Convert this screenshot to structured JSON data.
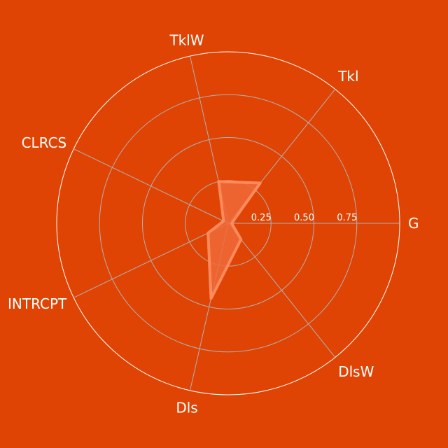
{
  "chart_data": {
    "type": "radar",
    "axes": [
      "G",
      "Tkl",
      "TklW",
      "CLRCS",
      "INTRCPT",
      "Dls",
      "DlsW"
    ],
    "series": [
      {
        "values": [
          0.02,
          0.3,
          0.25,
          0.03,
          0.13,
          0.45,
          0.12
        ]
      }
    ],
    "rlim": [
      0,
      1
    ],
    "rticks": [
      0.25,
      0.5,
      0.75
    ],
    "rtick_labels": [
      "0.25",
      "0.50",
      "0.75"
    ],
    "grid": true,
    "colors": {
      "background": "#DF4404",
      "series_stroke": "#FF8A5B",
      "series_fill": "#F06A3A",
      "grid": "#B0B0B0",
      "outer_ring": "#FFFFFF",
      "text": "#FFFFFF"
    }
  }
}
